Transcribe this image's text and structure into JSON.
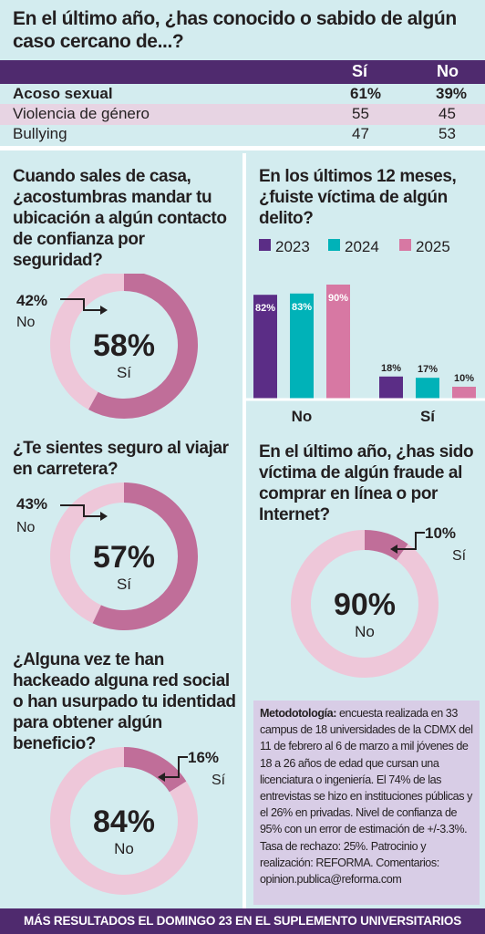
{
  "table": {
    "title": "En el último año, ¿has conocido o sabido de algún caso cercano de...?",
    "headers": [
      "Sí",
      "No"
    ],
    "rows": [
      {
        "label": "Acoso sexual",
        "si": "61%",
        "no": "39%"
      },
      {
        "label": "Violencia de género",
        "si": "55",
        "no": "45"
      },
      {
        "label": "Bullying",
        "si": "47",
        "no": "53"
      }
    ]
  },
  "q1": {
    "title": "Cuando sales de casa, ¿acostumbras mandar tu ubicación a algún contacto de confianza por seguridad?"
  },
  "q2": {
    "title": "¿Te sientes seguro al viajar en carretera?"
  },
  "q3": {
    "title": "¿Alguna vez te han hackeado alguna red social o han usurpado tu identidad para obtener algún beneficio?"
  },
  "q4": {
    "title": "En los últimos 12 meses, ¿fuiste víctima de algún delito?"
  },
  "q5": {
    "title": "En el último año, ¿has sido víctima de algún fraude al comprar en línea o por Internet?"
  },
  "colors": {
    "primary": "#c06e99",
    "secondary": "#eec7d9",
    "y2023": "#5b2d86",
    "y2024": "#00b2b8",
    "y2025": "#d778a3",
    "header": "#4f2a6e"
  },
  "method": {
    "label": "Metodotología:",
    "text": " encuesta realizada en 33 campus de 18 universidades de la CDMX del 11 de febrero al 6 de marzo a mil jóvenes de 18 a 26 años de edad que cursan una licenciatura o ingeniería. El 74% de las entrevistas se hizo en instituciones públicas y el 26% en privadas. Nivel de confianza de 95% con un error de estimación de +/-3.3%. Tasa de rechazo: 25%. Patrocinio y realización: REFORMA. Comentarios: opinion.publica@reforma.com"
  },
  "footer": "MÁS RESULTADOS EL DOMINGO 23 EN EL SUPLEMENTO UNIVERSITARIOS",
  "chart_data": [
    {
      "type": "table",
      "title": "En el último año, ¿has conocido o sabido de algún caso cercano de...?",
      "columns": [
        "Sí",
        "No"
      ],
      "rows": [
        [
          "Acoso sexual",
          61,
          39
        ],
        [
          "Violencia de género",
          55,
          45
        ],
        [
          "Bullying",
          47,
          53
        ]
      ]
    },
    {
      "type": "pie",
      "title": "Cuando sales de casa, ¿acostumbras mandar tu ubicación a algún contacto de confianza por seguridad?",
      "slices": [
        {
          "label": "Sí",
          "value": 58,
          "text": "58%"
        },
        {
          "label": "No",
          "value": 42,
          "text": "42%"
        }
      ]
    },
    {
      "type": "pie",
      "title": "¿Te sientes seguro al viajar en carretera?",
      "slices": [
        {
          "label": "Sí",
          "value": 57,
          "text": "57%"
        },
        {
          "label": "No",
          "value": 43,
          "text": "43%"
        }
      ]
    },
    {
      "type": "pie",
      "title": "¿Alguna vez te han hackeado alguna red social o han usurpado tu identidad para obtener algún beneficio?",
      "slices": [
        {
          "label": "No",
          "value": 84,
          "text": "84%"
        },
        {
          "label": "Sí",
          "value": 16,
          "text": "16%"
        }
      ]
    },
    {
      "type": "bar",
      "title": "En los últimos 12 meses, ¿fuiste víctima de algún delito?",
      "categories": [
        "No",
        "Sí"
      ],
      "series": [
        {
          "name": "2023",
          "values": [
            82,
            18
          ],
          "labels": [
            "82%",
            "18%"
          ]
        },
        {
          "name": "2024",
          "values": [
            83,
            17
          ],
          "labels": [
            "83%",
            "17%"
          ]
        },
        {
          "name": "2025",
          "values": [
            90,
            10
          ],
          "labels": [
            "90%",
            "10%"
          ]
        }
      ],
      "ylim": [
        0,
        100
      ],
      "grid": false,
      "legend": "top"
    },
    {
      "type": "pie",
      "title": "En el último año, ¿has sido víctima de algún fraude al comprar en línea o por Internet?",
      "slices": [
        {
          "label": "No",
          "value": 90,
          "text": "90%"
        },
        {
          "label": "Sí",
          "value": 10,
          "text": "10%"
        }
      ]
    }
  ]
}
